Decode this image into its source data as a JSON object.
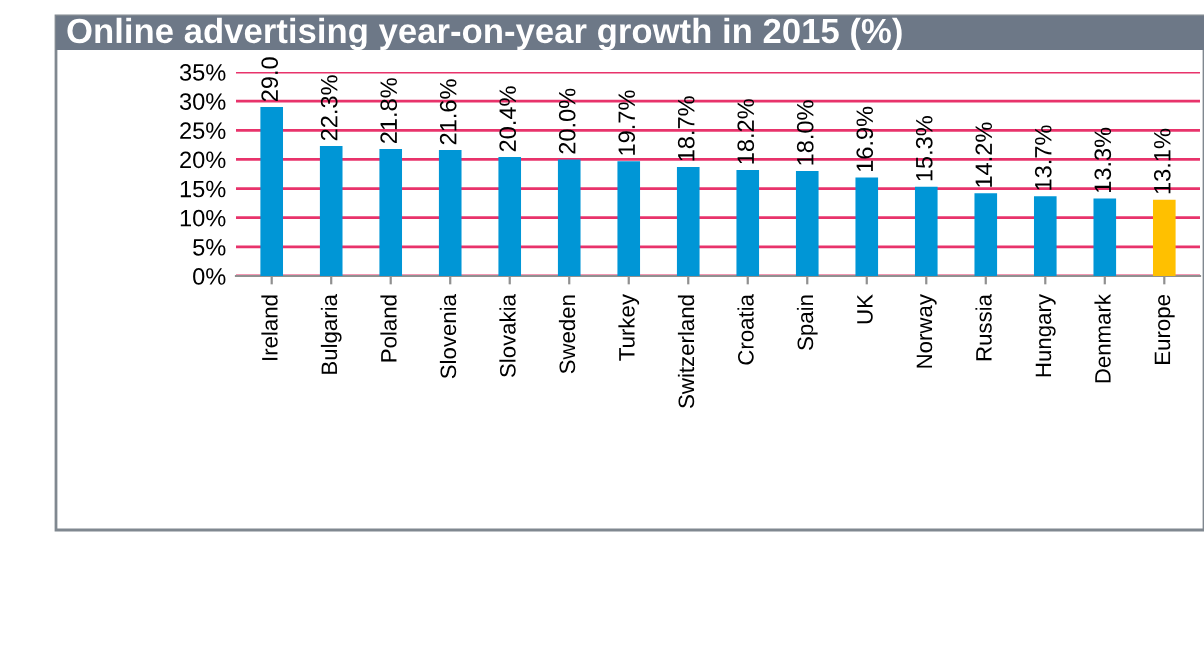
{
  "chart_data": {
    "type": "bar",
    "title": "Online advertising year-on-year growth in 2015 (%)",
    "categories": [
      "Ireland",
      "Bulgaria",
      "Poland",
      "Slovenia",
      "Slovakia",
      "Sweden",
      "Turkey",
      "Switzerland",
      "Croatia",
      "Spain",
      "UK",
      "Norway",
      "Russia",
      "Hungary",
      "Denmark",
      "Europe"
    ],
    "values": [
      29.0,
      22.3,
      21.8,
      21.6,
      20.4,
      20.0,
      19.7,
      18.7,
      18.2,
      18.0,
      16.9,
      15.3,
      14.2,
      13.7,
      13.3,
      13.1
    ],
    "value_labels": [
      "29.0",
      "22.3%",
      "21.8%",
      "21.6%",
      "20.4%",
      "20.0%",
      "19.7%",
      "18.7%",
      "18.2%",
      "18.0%",
      "16.9%",
      "15.3%",
      "14.2%",
      "13.7%",
      "13.3%",
      "13.1%"
    ],
    "colors": [
      "#0096d6",
      "#0096d6",
      "#0096d6",
      "#0096d6",
      "#0096d6",
      "#0096d6",
      "#0096d6",
      "#0096d6",
      "#0096d6",
      "#0096d6",
      "#0096d6",
      "#0096d6",
      "#0096d6",
      "#0096d6",
      "#0096d6",
      "#ffc000"
    ],
    "ylim": [
      0,
      35
    ],
    "yticks": [
      {
        "value": 0,
        "label": "0%"
      },
      {
        "value": 5,
        "label": "5%"
      },
      {
        "value": 10,
        "label": "10%"
      },
      {
        "value": 15,
        "label": "15%"
      },
      {
        "value": 20,
        "label": "20%"
      },
      {
        "value": 25,
        "label": "25%"
      },
      {
        "value": 30,
        "label": "30%"
      },
      {
        "value": 35,
        "label": "35%"
      }
    ],
    "grid": "y"
  }
}
